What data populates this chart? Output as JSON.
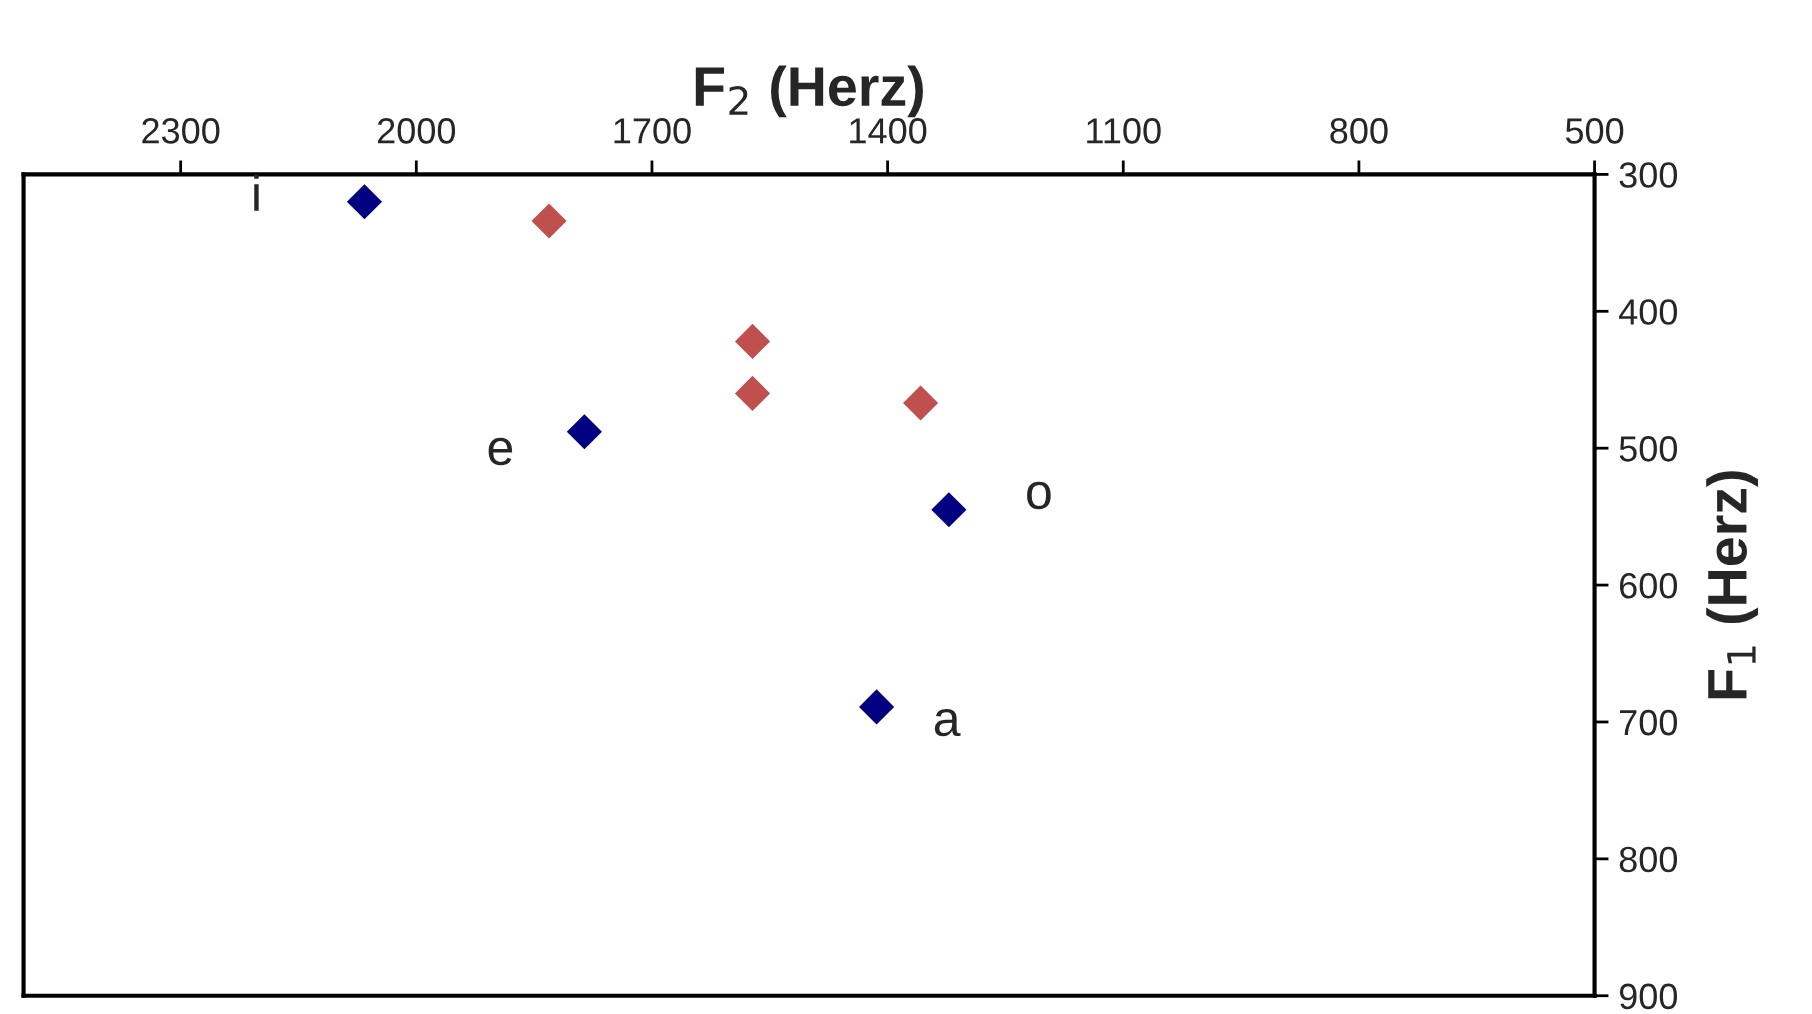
{
  "chart_data": {
    "type": "scatter",
    "xlabel": "F$_{2}$ (Herz)",
    "ylabel": "F$_{1}$ (Herz)",
    "series": [
      {
        "color": "#000080",
        "x": [
          2066,
          1786,
          1322,
          1414
        ],
        "values": [
          320,
          488,
          545,
          689
        ]
      },
      {
        "color": "#c0504d",
        "x": [
          1831,
          1572,
          1572,
          1358
        ],
        "values": [
          334,
          422,
          460,
          467
        ]
      }
    ],
    "xlim": [
      2500,
      500
    ],
    "xticks": [
      2300,
      2000,
      1700,
      1400,
      1100,
      800,
      500
    ],
    "ylim": [
      900,
      300
    ],
    "yticks": [
      300,
      400,
      500,
      600,
      700,
      800,
      900
    ],
    "annotations": [
      {
        "text": "i",
        "x": 2066,
        "y": 320
      },
      {
        "text": "e",
        "x": 1786,
        "y": 488
      },
      {
        "text": "o",
        "x": 1322,
        "y": 545
      },
      {
        "text": "a",
        "x": 1414,
        "y": 689
      }
    ],
    "marker": "diamond",
    "grid": false,
    "legend": false
  }
}
